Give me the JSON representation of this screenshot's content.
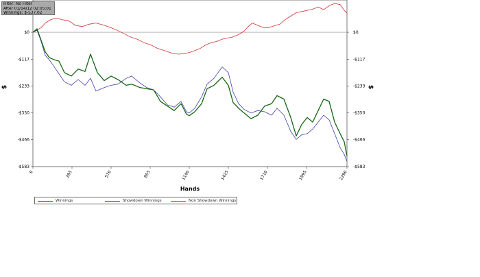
{
  "info": {
    "filter": "Filter: No Filter",
    "after": "After 01/14/12 02:05:01",
    "winnings": "Winnings: $-537.02"
  },
  "chart_data": {
    "type": "line",
    "xlabel": "Hands",
    "ylabel": "$",
    "xlim": [
      0,
      2290
    ],
    "ylim": [
      -583,
      140
    ],
    "x_ticks": [
      0,
      285,
      570,
      855,
      1140,
      1425,
      1710,
      1995,
      2290
    ],
    "y_tick_values": [
      0,
      -117,
      -233,
      -350,
      -466,
      -583
    ],
    "y_tick_labels": [
      "$0",
      "-$117",
      "-$233",
      "-$350",
      "-$466",
      "-$583"
    ],
    "grid": false,
    "legend_position": "bottom-left",
    "series": [
      {
        "name": "Winnings",
        "color": "#146614",
        "points": [
          [
            0,
            0
          ],
          [
            30,
            15
          ],
          [
            60,
            -35
          ],
          [
            90,
            -85
          ],
          [
            120,
            -110
          ],
          [
            150,
            -118
          ],
          [
            190,
            -125
          ],
          [
            230,
            -175
          ],
          [
            280,
            -190
          ],
          [
            330,
            -160
          ],
          [
            380,
            -170
          ],
          [
            420,
            -95
          ],
          [
            470,
            -175
          ],
          [
            520,
            -210
          ],
          [
            570,
            -190
          ],
          [
            620,
            -205
          ],
          [
            680,
            -230
          ],
          [
            720,
            -225
          ],
          [
            780,
            -240
          ],
          [
            830,
            -245
          ],
          [
            880,
            -250
          ],
          [
            930,
            -300
          ],
          [
            980,
            -320
          ],
          [
            1030,
            -340
          ],
          [
            1080,
            -310
          ],
          [
            1120,
            -355
          ],
          [
            1140,
            -362
          ],
          [
            1180,
            -345
          ],
          [
            1230,
            -310
          ],
          [
            1270,
            -245
          ],
          [
            1320,
            -230
          ],
          [
            1380,
            -195
          ],
          [
            1425,
            -230
          ],
          [
            1460,
            -305
          ],
          [
            1500,
            -330
          ],
          [
            1540,
            -350
          ],
          [
            1590,
            -375
          ],
          [
            1640,
            -360
          ],
          [
            1690,
            -320
          ],
          [
            1740,
            -310
          ],
          [
            1780,
            -275
          ],
          [
            1830,
            -290
          ],
          [
            1880,
            -370
          ],
          [
            1920,
            -450
          ],
          [
            1960,
            -400
          ],
          [
            2000,
            -370
          ],
          [
            2040,
            -390
          ],
          [
            2080,
            -340
          ],
          [
            2120,
            -290
          ],
          [
            2160,
            -300
          ],
          [
            2200,
            -390
          ],
          [
            2240,
            -440
          ],
          [
            2270,
            -475
          ],
          [
            2290,
            -537
          ]
        ]
      },
      {
        "name": "Showdown Winnings",
        "color": "#3f3fa8",
        "points": [
          [
            0,
            0
          ],
          [
            30,
            8
          ],
          [
            60,
            -40
          ],
          [
            90,
            -100
          ],
          [
            120,
            -120
          ],
          [
            150,
            -145
          ],
          [
            190,
            -180
          ],
          [
            230,
            -215
          ],
          [
            280,
            -230
          ],
          [
            330,
            -205
          ],
          [
            380,
            -230
          ],
          [
            420,
            -200
          ],
          [
            460,
            -255
          ],
          [
            520,
            -240
          ],
          [
            570,
            -230
          ],
          [
            620,
            -225
          ],
          [
            680,
            -200
          ],
          [
            720,
            -190
          ],
          [
            780,
            -220
          ],
          [
            830,
            -240
          ],
          [
            880,
            -250
          ],
          [
            930,
            -280
          ],
          [
            980,
            -315
          ],
          [
            1030,
            -325
          ],
          [
            1080,
            -300
          ],
          [
            1120,
            -345
          ],
          [
            1140,
            -350
          ],
          [
            1180,
            -330
          ],
          [
            1230,
            -280
          ],
          [
            1270,
            -225
          ],
          [
            1320,
            -200
          ],
          [
            1380,
            -150
          ],
          [
            1425,
            -175
          ],
          [
            1460,
            -260
          ],
          [
            1500,
            -310
          ],
          [
            1540,
            -335
          ],
          [
            1590,
            -350
          ],
          [
            1640,
            -340
          ],
          [
            1690,
            -345
          ],
          [
            1740,
            -360
          ],
          [
            1780,
            -330
          ],
          [
            1830,
            -360
          ],
          [
            1880,
            -430
          ],
          [
            1920,
            -465
          ],
          [
            1960,
            -445
          ],
          [
            2000,
            -440
          ],
          [
            2040,
            -420
          ],
          [
            2080,
            -390
          ],
          [
            2120,
            -360
          ],
          [
            2160,
            -380
          ],
          [
            2200,
            -440
          ],
          [
            2240,
            -500
          ],
          [
            2270,
            -530
          ],
          [
            2290,
            -560
          ]
        ]
      },
      {
        "name": "Non Showdown Winnings",
        "color": "#cc3333",
        "points": [
          [
            0,
            0
          ],
          [
            30,
            10
          ],
          [
            60,
            20
          ],
          [
            90,
            40
          ],
          [
            130,
            55
          ],
          [
            170,
            62
          ],
          [
            210,
            55
          ],
          [
            260,
            50
          ],
          [
            310,
            30
          ],
          [
            360,
            25
          ],
          [
            410,
            35
          ],
          [
            460,
            40
          ],
          [
            510,
            32
          ],
          [
            560,
            22
          ],
          [
            610,
            10
          ],
          [
            660,
            -5
          ],
          [
            710,
            -20
          ],
          [
            760,
            -30
          ],
          [
            810,
            -45
          ],
          [
            860,
            -55
          ],
          [
            910,
            -70
          ],
          [
            960,
            -80
          ],
          [
            1010,
            -90
          ],
          [
            1060,
            -95
          ],
          [
            1100,
            -93
          ],
          [
            1140,
            -88
          ],
          [
            1180,
            -80
          ],
          [
            1220,
            -70
          ],
          [
            1260,
            -55
          ],
          [
            1300,
            -45
          ],
          [
            1340,
            -40
          ],
          [
            1380,
            -30
          ],
          [
            1420,
            -25
          ],
          [
            1460,
            -20
          ],
          [
            1500,
            -10
          ],
          [
            1540,
            5
          ],
          [
            1570,
            25
          ],
          [
            1600,
            40
          ],
          [
            1640,
            30
          ],
          [
            1680,
            20
          ],
          [
            1720,
            20
          ],
          [
            1760,
            28
          ],
          [
            1800,
            35
          ],
          [
            1840,
            55
          ],
          [
            1880,
            70
          ],
          [
            1920,
            85
          ],
          [
            1960,
            90
          ],
          [
            2000,
            95
          ],
          [
            2040,
            100
          ],
          [
            2080,
            110
          ],
          [
            2120,
            98
          ],
          [
            2160,
            115
          ],
          [
            2200,
            125
          ],
          [
            2240,
            120
          ],
          [
            2270,
            95
          ],
          [
            2290,
            82
          ]
        ]
      }
    ]
  }
}
